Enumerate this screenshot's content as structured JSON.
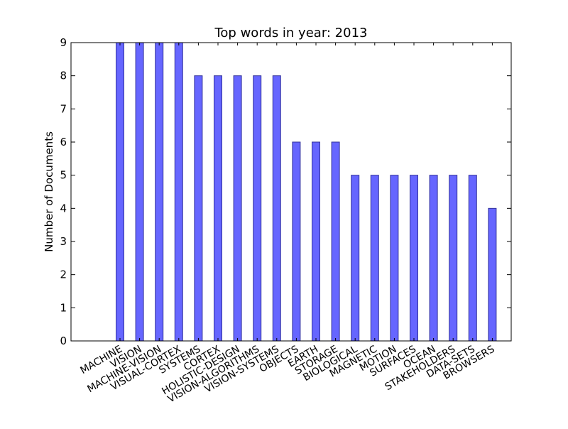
{
  "chart_data": {
    "type": "bar",
    "title": "Top words in year: 2013",
    "xlabel": "",
    "ylabel": "Number of Documents",
    "ylim": [
      0,
      9
    ],
    "yticks": [
      0,
      1,
      2,
      3,
      4,
      5,
      6,
      7,
      8,
      9
    ],
    "categories": [
      "MACHINE",
      "VISION",
      "MACHINE-VISION",
      "VISUAL-CORTEX",
      "SYSTEMS",
      "CORTEX",
      "HOLISTIC-DESIGN",
      "VISION-ALGORITHMS",
      "VISION-SYSTEMS",
      "OBJECTS",
      "EARTH",
      "STORAGE",
      "BIOLOGICAL",
      "MAGNETIC",
      "MOTION",
      "SURFACES",
      "OCEAN",
      "STAKEHOLDERS",
      "DATA-SETS",
      "BROWSERS"
    ],
    "values": [
      9,
      9,
      9,
      9,
      8,
      8,
      8,
      8,
      8,
      6,
      6,
      6,
      5,
      5,
      5,
      5,
      5,
      5,
      5,
      4
    ],
    "bar_color": "#6666ff",
    "bar_edge_color": "#333399",
    "grid": false,
    "legend": "none"
  }
}
